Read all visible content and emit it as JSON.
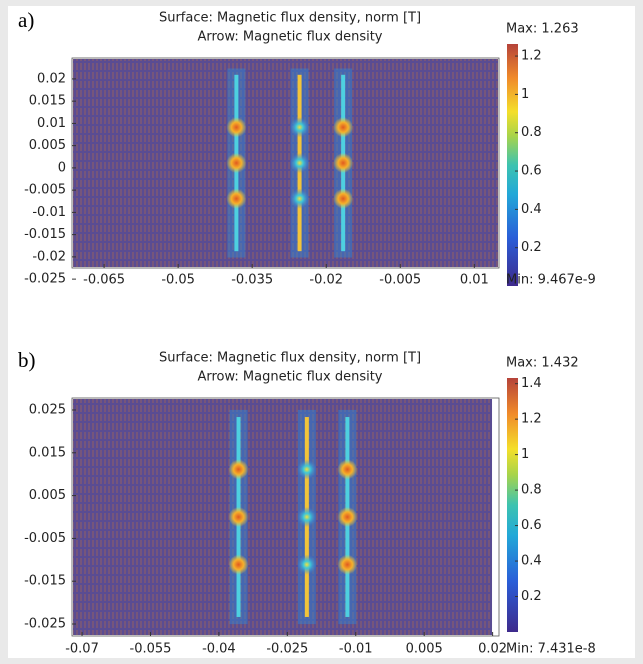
{
  "chart_data": [
    {
      "type": "surface",
      "panel_label": "a)",
      "title": "Surface: Magnetic flux density, norm [T]",
      "subtitle": "Arrow: Magnetic flux density",
      "xlim": [
        -0.0715,
        0.015
      ],
      "ylim": [
        -0.0225,
        0.0247
      ],
      "xticks": [
        -0.065,
        -0.05,
        -0.035,
        -0.02,
        -0.005,
        0.01
      ],
      "yticks": [
        0.02,
        0.015,
        0.01,
        0.005,
        0,
        -0.005,
        -0.01,
        -0.015,
        -0.02,
        -0.025
      ],
      "colorbar": {
        "lim": [
          9.467e-09,
          1.263
        ],
        "ticks": [
          1.2,
          1,
          0.8,
          0.6,
          0.4,
          0.2
        ],
        "max": {
          "value": 1.263,
          "label": "Max: 1.263"
        },
        "min": {
          "value": 9.467e-09,
          "label": "Min: 9.467e-9"
        }
      }
    },
    {
      "type": "surface",
      "panel_label": "b)",
      "title": "Surface: Magnetic flux density, norm [T]",
      "subtitle": "Arrow: Magnetic flux density",
      "xlim": [
        -0.0722,
        0.0214
      ],
      "ylim": [
        -0.0278,
        0.0278
      ],
      "xticks": [
        -0.07,
        -0.055,
        -0.04,
        -0.025,
        -0.01,
        0.005,
        0.02
      ],
      "yticks": [
        0.025,
        0.015,
        0.005,
        -0.005,
        -0.015,
        -0.025
      ],
      "colorbar": {
        "lim": [
          7.431e-08,
          1.432
        ],
        "ticks": [
          1.4,
          1.2,
          1,
          0.8,
          0.6,
          0.4,
          0.2
        ],
        "max": {
          "value": 1.432,
          "label": "Max: 1.432"
        },
        "min": {
          "value": 7.431e-08,
          "label": "Min: 7.431e-8"
        }
      }
    }
  ]
}
